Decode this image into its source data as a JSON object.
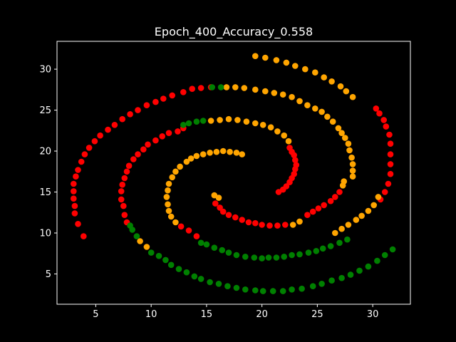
{
  "chart_data": {
    "type": "scatter",
    "title": "Epoch_400_Accuracy_0.558",
    "xlabel": "",
    "ylabel": "",
    "xlim": [
      1.5,
      33.4
    ],
    "ylim": [
      1.3,
      33.4
    ],
    "x_ticks": [
      5,
      10,
      15,
      20,
      25,
      30
    ],
    "y_ticks": [
      5,
      10,
      15,
      20,
      25,
      30
    ],
    "grid": false,
    "colors": {
      "background": "#000000",
      "axes": "#ffffff",
      "red": "#ff0000",
      "orange": "#ffa500",
      "green": "#008000"
    },
    "series": [
      {
        "color": "red",
        "points": [
          [
            3.9,
            9.6
          ],
          [
            3.4,
            11.1
          ],
          [
            3.1,
            12.4
          ],
          [
            3.1,
            13.3
          ],
          [
            3.0,
            14.2
          ],
          [
            3.0,
            15.1
          ],
          [
            3.0,
            16.0
          ],
          [
            3.2,
            16.9
          ],
          [
            3.4,
            17.7
          ],
          [
            3.7,
            18.7
          ],
          [
            4.0,
            19.6
          ],
          [
            4.4,
            20.4
          ],
          [
            4.9,
            21.2
          ],
          [
            5.4,
            21.9
          ],
          [
            6.1,
            22.6
          ],
          [
            6.7,
            23.2
          ],
          [
            7.4,
            23.9
          ],
          [
            8.1,
            24.5
          ],
          [
            8.8,
            25.0
          ],
          [
            9.6,
            25.6
          ],
          [
            10.4,
            26.0
          ],
          [
            11.1,
            26.4
          ],
          [
            11.9,
            26.8
          ],
          [
            12.9,
            27.2
          ],
          [
            13.7,
            27.6
          ],
          [
            14.5,
            27.7
          ],
          [
            15.4,
            27.8
          ],
          [
            30.3,
            25.2
          ],
          [
            30.6,
            24.6
          ],
          [
            31.0,
            23.8
          ],
          [
            31.2,
            23.0
          ],
          [
            31.5,
            22.0
          ],
          [
            31.6,
            20.9
          ],
          [
            31.6,
            19.6
          ],
          [
            31.6,
            18.4
          ],
          [
            31.6,
            17.2
          ],
          [
            31.4,
            16.0
          ],
          [
            31.1,
            15.0
          ],
          [
            30.7,
            14.1
          ],
          [
            7.6,
            12.2
          ],
          [
            7.5,
            13.3
          ],
          [
            7.3,
            14.1
          ],
          [
            7.3,
            15.1
          ],
          [
            7.4,
            15.9
          ],
          [
            7.6,
            16.7
          ],
          [
            7.8,
            17.5
          ],
          [
            8.0,
            18.2
          ],
          [
            8.4,
            19.0
          ],
          [
            8.8,
            19.6
          ],
          [
            9.3,
            20.2
          ],
          [
            9.7,
            20.8
          ],
          [
            10.4,
            21.3
          ],
          [
            11.0,
            21.8
          ],
          [
            11.6,
            22.2
          ],
          [
            12.4,
            22.4
          ],
          [
            12.9,
            22.8
          ],
          [
            7.8,
            11.3
          ],
          [
            12.7,
            10.8
          ],
          [
            13.4,
            10.3
          ],
          [
            14.1,
            9.6
          ],
          [
            15.8,
            13.6
          ],
          [
            16.2,
            13.1
          ],
          [
            16.5,
            12.6
          ],
          [
            17.0,
            12.2
          ],
          [
            17.6,
            11.9
          ],
          [
            18.2,
            11.6
          ],
          [
            18.8,
            11.3
          ],
          [
            19.4,
            11.2
          ],
          [
            20.0,
            11.0
          ],
          [
            20.7,
            10.9
          ],
          [
            21.4,
            10.9
          ],
          [
            22.1,
            11.0
          ],
          [
            22.5,
            20.4
          ],
          [
            22.7,
            19.9
          ],
          [
            22.9,
            19.5
          ],
          [
            23.0,
            18.9
          ],
          [
            23.1,
            18.3
          ],
          [
            23.0,
            17.8
          ],
          [
            22.9,
            17.2
          ],
          [
            22.7,
            16.7
          ],
          [
            22.5,
            16.2
          ],
          [
            22.2,
            15.7
          ],
          [
            21.9,
            15.3
          ],
          [
            21.5,
            15.0
          ],
          [
            24.1,
            12.2
          ],
          [
            24.6,
            12.6
          ],
          [
            25.1,
            13.0
          ],
          [
            25.6,
            13.4
          ],
          [
            26.2,
            13.9
          ],
          [
            26.6,
            14.4
          ],
          [
            27.0,
            15.0
          ]
        ]
      },
      {
        "color": "orange",
        "points": [
          [
            19.4,
            31.6
          ],
          [
            20.3,
            31.4
          ],
          [
            21.3,
            31.1
          ],
          [
            22.2,
            30.8
          ],
          [
            23.0,
            30.4
          ],
          [
            23.9,
            30.0
          ],
          [
            24.8,
            29.6
          ],
          [
            25.6,
            29.0
          ],
          [
            26.3,
            28.5
          ],
          [
            27.1,
            27.9
          ],
          [
            27.6,
            27.3
          ],
          [
            28.2,
            26.6
          ],
          [
            16.8,
            27.8
          ],
          [
            17.6,
            27.8
          ],
          [
            18.4,
            27.7
          ],
          [
            19.4,
            27.5
          ],
          [
            20.3,
            27.3
          ],
          [
            21.1,
            27.1
          ],
          [
            21.9,
            26.9
          ],
          [
            22.7,
            26.6
          ],
          [
            23.4,
            26.1
          ],
          [
            24.1,
            25.6
          ],
          [
            24.8,
            25.2
          ],
          [
            25.4,
            24.8
          ],
          [
            25.9,
            24.2
          ],
          [
            26.4,
            23.6
          ],
          [
            26.9,
            22.8
          ],
          [
            27.2,
            22.2
          ],
          [
            27.5,
            21.6
          ],
          [
            27.8,
            20.9
          ],
          [
            27.9,
            20.1
          ],
          [
            28.1,
            19.2
          ],
          [
            28.2,
            18.4
          ],
          [
            28.2,
            17.6
          ],
          [
            28.2,
            16.9
          ],
          [
            15.4,
            23.7
          ],
          [
            16.2,
            23.8
          ],
          [
            17.0,
            23.9
          ],
          [
            17.8,
            23.8
          ],
          [
            18.6,
            23.6
          ],
          [
            19.4,
            23.4
          ],
          [
            20.1,
            23.2
          ],
          [
            20.8,
            22.9
          ],
          [
            21.4,
            22.4
          ],
          [
            22.0,
            21.9
          ],
          [
            22.4,
            21.2
          ],
          [
            27.3,
            15.8
          ],
          [
            27.4,
            16.3
          ],
          [
            28.5,
            11.6
          ],
          [
            29.0,
            12.1
          ],
          [
            29.6,
            12.7
          ],
          [
            30.1,
            13.4
          ],
          [
            30.5,
            14.4
          ],
          [
            26.6,
            10.0
          ],
          [
            27.2,
            10.5
          ],
          [
            27.8,
            11.0
          ],
          [
            16.1,
            14.3
          ],
          [
            15.7,
            14.6
          ],
          [
            13.2,
            18.7
          ],
          [
            13.6,
            19.1
          ],
          [
            14.1,
            19.4
          ],
          [
            14.7,
            19.6
          ],
          [
            15.3,
            19.8
          ],
          [
            15.9,
            19.9
          ],
          [
            16.5,
            20.0
          ],
          [
            17.1,
            19.9
          ],
          [
            17.7,
            19.8
          ],
          [
            18.2,
            19.6
          ],
          [
            12.6,
            18.1
          ],
          [
            12.2,
            17.5
          ],
          [
            11.9,
            16.8
          ],
          [
            11.6,
            16.0
          ],
          [
            11.5,
            15.2
          ],
          [
            11.4,
            14.4
          ],
          [
            11.5,
            13.5
          ],
          [
            11.6,
            12.7
          ],
          [
            11.8,
            12.0
          ],
          [
            12.2,
            11.3
          ],
          [
            22.8,
            11.0
          ],
          [
            23.4,
            11.4
          ],
          [
            9.0,
            9.0
          ],
          [
            9.6,
            8.3
          ]
        ]
      },
      {
        "color": "green",
        "points": [
          [
            15.5,
            27.8
          ],
          [
            16.3,
            27.8
          ],
          [
            12.9,
            23.2
          ],
          [
            13.4,
            23.4
          ],
          [
            14.1,
            23.6
          ],
          [
            14.7,
            23.7
          ],
          [
            8.1,
            10.9
          ],
          [
            8.3,
            10.4
          ],
          [
            8.7,
            9.6
          ],
          [
            14.5,
            8.8
          ],
          [
            15.0,
            8.6
          ],
          [
            15.7,
            8.2
          ],
          [
            16.4,
            7.9
          ],
          [
            17.0,
            7.6
          ],
          [
            17.7,
            7.3
          ],
          [
            18.5,
            7.1
          ],
          [
            19.3,
            7.0
          ],
          [
            20.0,
            6.9
          ],
          [
            20.6,
            7.0
          ],
          [
            21.3,
            7.0
          ],
          [
            22.0,
            7.1
          ],
          [
            22.7,
            7.3
          ],
          [
            23.4,
            7.4
          ],
          [
            24.2,
            7.6
          ],
          [
            24.9,
            7.8
          ],
          [
            25.5,
            8.1
          ],
          [
            26.2,
            8.4
          ],
          [
            27.0,
            8.8
          ],
          [
            27.7,
            9.2
          ],
          [
            10.0,
            7.6
          ],
          [
            10.7,
            7.2
          ],
          [
            11.3,
            6.7
          ],
          [
            11.8,
            6.1
          ],
          [
            12.5,
            5.6
          ],
          [
            13.2,
            5.2
          ],
          [
            13.9,
            4.7
          ],
          [
            14.5,
            4.4
          ],
          [
            15.3,
            4.0
          ],
          [
            16.1,
            3.8
          ],
          [
            16.9,
            3.5
          ],
          [
            17.7,
            3.3
          ],
          [
            18.5,
            3.1
          ],
          [
            19.4,
            3.0
          ],
          [
            20.1,
            2.9
          ],
          [
            21.0,
            2.9
          ],
          [
            21.9,
            2.9
          ],
          [
            22.7,
            3.1
          ],
          [
            23.6,
            3.2
          ],
          [
            24.6,
            3.5
          ],
          [
            25.4,
            3.8
          ],
          [
            26.3,
            4.2
          ],
          [
            27.2,
            4.5
          ],
          [
            28.0,
            4.9
          ],
          [
            28.8,
            5.4
          ],
          [
            29.6,
            5.9
          ],
          [
            30.4,
            6.6
          ],
          [
            31.1,
            7.3
          ],
          [
            31.8,
            8.0
          ]
        ]
      }
    ]
  }
}
